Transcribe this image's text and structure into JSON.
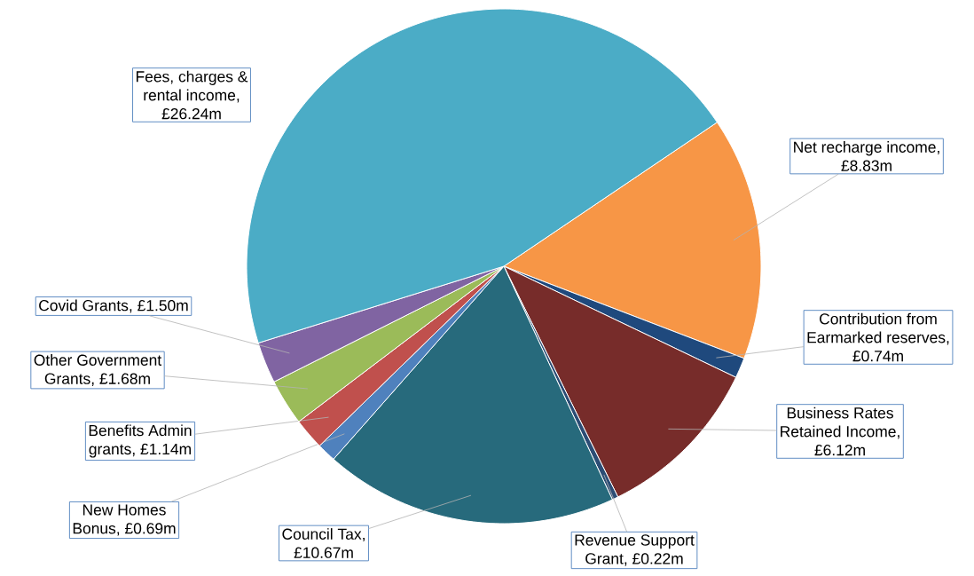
{
  "chart_data": {
    "type": "pie",
    "categories": [
      "Net recharge income",
      "Contribution from Earmarked reserves",
      "Business Rates Retained Income",
      "Revenue Support Grant",
      "Council Tax",
      "New Homes Bonus",
      "Benefits Admin grants",
      "Other Government Grants",
      "Covid Grants",
      "Fees, charges & rental income"
    ],
    "values": [
      8.83,
      0.74,
      6.12,
      0.22,
      10.67,
      0.69,
      1.14,
      1.68,
      1.5,
      26.24
    ],
    "value_labels": [
      ", £8.83m",
      ", £0.74m",
      ", £6.12m",
      ", £0.22m",
      ", £10.67m",
      ", £0.69m",
      ", £1.14m",
      ", £1.68m",
      ", £1.50m",
      ", £26.24m"
    ],
    "colors": [
      "#f79646",
      "#1f497d",
      "#772c2a",
      "#2c4d75",
      "#276a7c",
      "#4f81bd",
      "#c0504d",
      "#9bbb59",
      "#8064a2",
      "#4bacc6"
    ]
  }
}
